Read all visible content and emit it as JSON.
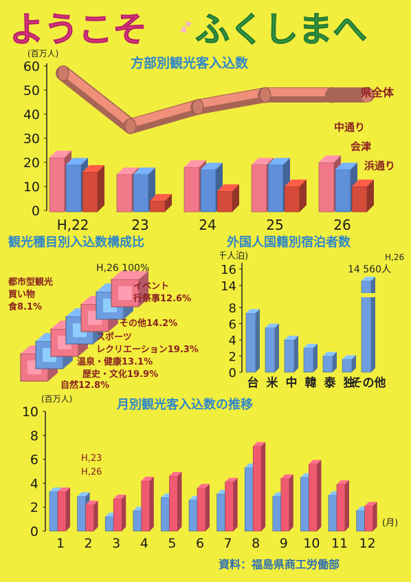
{
  "title": {
    "part1": "ようこそ",
    "part2": "ふくしまへ"
  },
  "source": "資料：福島県商工労働部",
  "chart_data": [
    {
      "type": "bar",
      "title": "方部別観光客入込数",
      "ylabel": "(百万人)",
      "ylim": [
        0,
        60
      ],
      "yticks": [
        "0",
        "10",
        "20",
        "30",
        "40",
        "50",
        "60"
      ],
      "categories": [
        "H,22",
        "23",
        "24",
        "25",
        "26"
      ],
      "series": [
        {
          "name": "中通り",
          "values": [
            22,
            15,
            18,
            19,
            20
          ]
        },
        {
          "name": "会津",
          "values": [
            19,
            15,
            17,
            19,
            17
          ]
        },
        {
          "name": "浜通り",
          "values": [
            16,
            4,
            8,
            10,
            10
          ]
        }
      ],
      "total": {
        "name": "県全体",
        "values": [
          57,
          35,
          43,
          48,
          48
        ]
      },
      "colors": {
        "中通り": "#f07888",
        "会津": "#5f8fd8",
        "浜通り": "#d44b3a",
        "県全体": "#f0907a"
      }
    },
    {
      "type": "bar",
      "title": "観光種目別入込数構成比",
      "top_label": "H,26 100%",
      "segments": [
        {
          "label": "自然",
          "value": "12.8%"
        },
        {
          "label": "歴史・文化",
          "value": "19.9%"
        },
        {
          "label": "温泉・健康",
          "value": "13.1%"
        },
        {
          "label": "スポーツ\nレクリエーション",
          "value": "19.3%"
        },
        {
          "label": "その他",
          "value": "14.2%"
        },
        {
          "label": "イベント\n行祭事",
          "value": "12.6%"
        },
        {
          "label": "都市型観光\n買い物\n食",
          "value": "8.1%"
        }
      ]
    },
    {
      "type": "bar",
      "title": "外国人国籍別宿泊者数",
      "ylabel": "(千人泊)",
      "yticks": [
        "0",
        "2",
        "4",
        "6",
        "8",
        "14",
        "16"
      ],
      "categories": [
        "台",
        "米",
        "中",
        "韓",
        "泰",
        "独",
        "その他"
      ],
      "values": [
        7.3,
        5.5,
        4.0,
        3.0,
        2.0,
        1.6,
        14.56
      ],
      "annotation": {
        "year": "H,26",
        "value": "14 560人"
      },
      "axis_break": true
    },
    {
      "type": "bar",
      "title": "月別観光客入込数の推移",
      "ylabel": "(百万人)",
      "ylim": [
        0,
        10
      ],
      "yticks": [
        "0",
        "2",
        "4",
        "6",
        "8",
        "10"
      ],
      "xunit": "(月)",
      "categories": [
        "1",
        "2",
        "3",
        "4",
        "5",
        "6",
        "7",
        "8",
        "9",
        "10",
        "11",
        "12"
      ],
      "series": [
        {
          "name": "H,23",
          "values": [
            3.3,
            2.9,
            1.2,
            1.7,
            2.8,
            2.6,
            3.1,
            5.3,
            2.9,
            4.5,
            3.0,
            1.7
          ]
        },
        {
          "name": "H,26",
          "values": [
            3.3,
            2.2,
            2.7,
            4.2,
            4.6,
            3.6,
            4.1,
            7.1,
            4.4,
            5.6,
            3.9,
            2.1
          ]
        }
      ]
    }
  ]
}
